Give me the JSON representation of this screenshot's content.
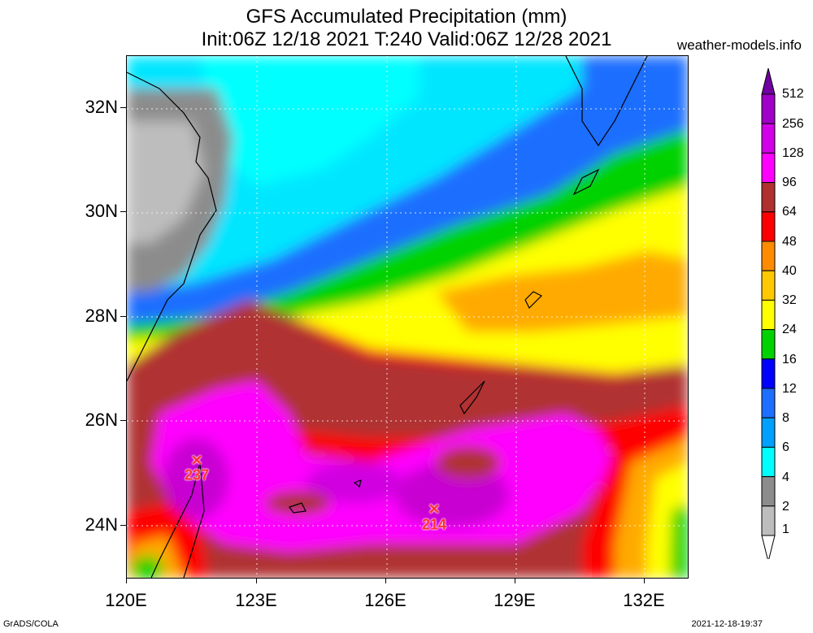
{
  "title": "GFS Accumulated Precipitation (mm)",
  "subtitle": "Init:06Z 12/18 2021 T:240 Valid:06Z 12/28 2021",
  "source": "weather-models.info",
  "axes": {
    "lat": [
      "32N",
      "30N",
      "28N",
      "26N",
      "24N"
    ],
    "lon": [
      "120E",
      "123E",
      "126E",
      "129E",
      "132E"
    ]
  },
  "markers": [
    {
      "symbol": "✕",
      "value": "237"
    },
    {
      "symbol": "✕",
      "value": "214"
    }
  ],
  "legend": {
    "labels": [
      "512",
      "256",
      "128",
      "96",
      "64",
      "48",
      "40",
      "32",
      "24",
      "16",
      "12",
      "8",
      "6",
      "4",
      "2",
      "1"
    ],
    "colors": [
      "#7000a0",
      "#a000c8",
      "#d200e6",
      "#ff00ff",
      "#b03030",
      "#ff0000",
      "#ff8c00",
      "#ffc800",
      "#ffff00",
      "#00d200",
      "#0000ff",
      "#1e6eff",
      "#00a0ff",
      "#00ffff",
      "#8c8c8c",
      "#bdbdbd",
      "#ffffff"
    ]
  },
  "footer": {
    "left": "GrADS/COLA",
    "right": "2021-12-18-19:37"
  }
}
